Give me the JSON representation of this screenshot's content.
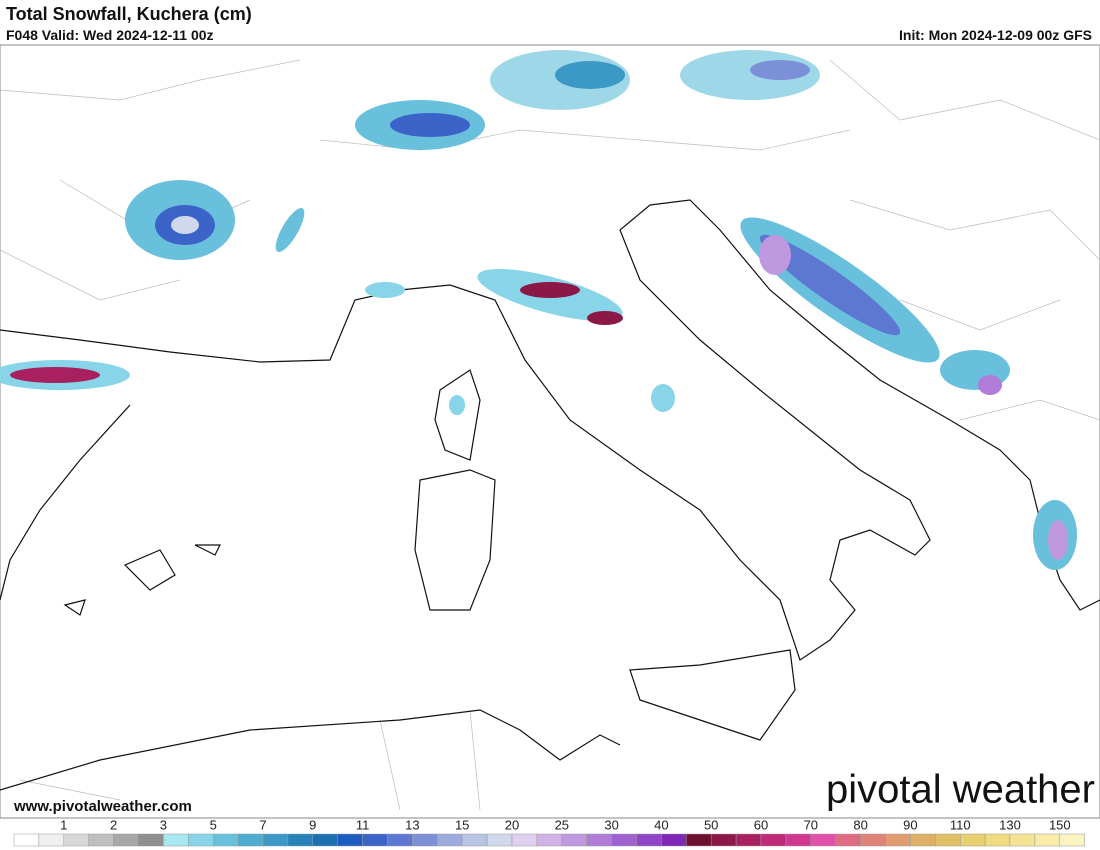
{
  "header": {
    "title": "Total Snowfall, Kuchera (cm)",
    "valid": "F048 Valid: Wed 2024-12-11 00z",
    "init": "Init: Mon 2024-12-09 00z GFS"
  },
  "footer": {
    "website": "www.pivotalweather.com",
    "logo": "pivotal weather"
  },
  "colorbar": {
    "labels": [
      1,
      2,
      3,
      5,
      7,
      9,
      11,
      13,
      15,
      20,
      25,
      30,
      40,
      50,
      60,
      70,
      80,
      90,
      110,
      130,
      150
    ],
    "colors": [
      "#ffffff",
      "#f0f0f0",
      "#d8d8d8",
      "#c0c0c0",
      "#a8a8a8",
      "#909090",
      "#a8e8f0",
      "#88d4e8",
      "#68c0dc",
      "#50acd0",
      "#3c98c4",
      "#2884b8",
      "#1c70b0",
      "#1c5cc0",
      "#3c64c8",
      "#5c78d0",
      "#7c90d8",
      "#9cacdc",
      "#b8c4e4",
      "#d0d8ec",
      "#e0d0f0",
      "#d0b4e8",
      "#c098e0",
      "#b07cd8",
      "#a060d0",
      "#9044c8",
      "#8028b8",
      "#701030",
      "#8c1848",
      "#a82060",
      "#c02878",
      "#d03890",
      "#e050a8",
      "#e06c84",
      "#e08478",
      "#e09c70",
      "#e0b068",
      "#e0c064",
      "#e8d070",
      "#f0dc80",
      "#f4e494",
      "#f8eca8",
      "#fcf4c0"
    ]
  }
}
